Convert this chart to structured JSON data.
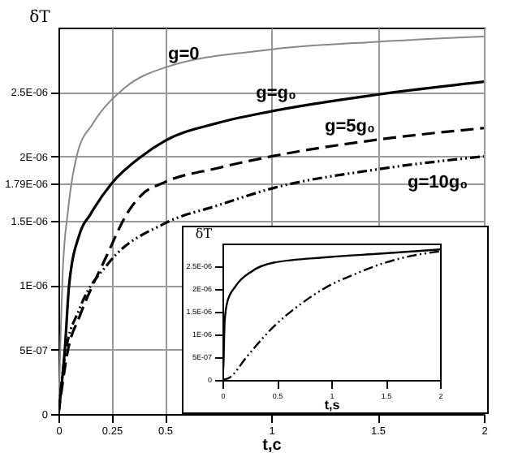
{
  "chart_data": [
    {
      "type": "line",
      "xlabel": "t,c",
      "ylabel": "δT",
      "xlim": [
        0,
        2
      ],
      "ylim": [
        0,
        3e-06
      ],
      "xticks": [
        0,
        0.25,
        0.5,
        1,
        1.5,
        2
      ],
      "yticks": [
        0,
        {
          "value": 5e-07,
          "label": "5E-07"
        },
        {
          "value": 1e-06,
          "label": "1E-06"
        },
        {
          "value": 1.5e-06,
          "label": "1.5E-06"
        },
        {
          "value": 1.79e-06,
          "label": "1.79E-06"
        },
        {
          "value": 2e-06,
          "label": "2E-06"
        },
        {
          "value": 2.5e-06,
          "label": "2.5E-06"
        }
      ],
      "grid": true,
      "series": [
        {
          "name": "g=0",
          "color": "#888888",
          "line_style": "solid",
          "x": [
            0,
            0.01,
            0.02,
            0.045,
            0.09,
            0.16,
            0.31,
            0.5,
            1,
            1.5,
            2
          ],
          "values": [
            0,
            6e-07,
            1.1e-06,
            1.58e-06,
            2.03e-06,
            2.25e-06,
            2.53e-06,
            2.69e-06,
            2.83e-06,
            2.89e-06,
            2.93e-06
          ]
        },
        {
          "name": "g=g₀",
          "color": "#000000",
          "line_style": "solid",
          "x": [
            0,
            0.03,
            0.05,
            0.1,
            0.15,
            0.25,
            0.39,
            0.5,
            0.75,
            1,
            1.5,
            2
          ],
          "values": [
            0,
            5e-07,
            1e-06,
            1.4e-06,
            1.55e-06,
            1.79e-06,
            2e-06,
            2.12e-06,
            2.26e-06,
            2.35e-06,
            2.48e-06,
            2.58e-06
          ]
        },
        {
          "name": "g=5g₀",
          "color": "#000000",
          "line_style": "dashed",
          "x": [
            0,
            0.045,
            0.1,
            0.23,
            0.32,
            0.39,
            0.5,
            0.75,
            1,
            1.5,
            2
          ],
          "values": [
            0,
            5e-07,
            7.6e-07,
            1.24e-06,
            1.55e-06,
            1.7e-06,
            1.8e-06,
            1.91e-06,
            2e-06,
            2.13e-06,
            2.22e-06
          ]
        },
        {
          "name": "g=10g₀",
          "color": "#000000",
          "line_style": "dotted",
          "x": [
            0,
            0.03,
            0.1,
            0.235,
            0.5,
            0.75,
            1,
            1.5,
            2
          ],
          "values": [
            0,
            4.5e-07,
            8.2e-07,
            1.17e-06,
            1.48e-06,
            1.62e-06,
            1.75e-06,
            1.9e-06,
            2e-06
          ]
        }
      ]
    },
    {
      "type": "line",
      "xlabel": "t,s",
      "ylabel": "δT",
      "xlim": [
        0,
        2
      ],
      "ylim": [
        0,
        3e-06
      ],
      "xticks": [
        0,
        0.5,
        1,
        1.5,
        2
      ],
      "yticks": [
        0,
        {
          "value": 5e-07,
          "label": "5E-07"
        },
        {
          "value": 1e-06,
          "label": "1E-06"
        },
        {
          "value": 1.5e-06,
          "label": "1.5E-06"
        },
        {
          "value": 2e-06,
          "label": "2E-06"
        },
        {
          "value": 2.5e-06,
          "label": "2.5E-06"
        }
      ],
      "series": [
        {
          "color": "#000000",
          "line_style": "solid",
          "x": [
            0,
            0.01,
            0.02,
            0.045,
            0.12,
            0.27,
            0.47,
            0.97,
            1.47,
            2
          ],
          "values": [
            0,
            3.9e-07,
            1.28e-06,
            1.72e-06,
            2.06e-06,
            2.39e-06,
            2.58e-06,
            2.7e-06,
            2.78e-06,
            2.87e-06
          ]
        },
        {
          "color": "#000000",
          "line_style": "dotted",
          "x": [
            0,
            0.07,
            0.22,
            0.47,
            0.72,
            0.97,
            1.22,
            1.47,
            1.72,
            2
          ],
          "values": [
            0,
            6e-08,
            5e-07,
            1.17e-06,
            1.67e-06,
            2.06e-06,
            2.33e-06,
            2.56e-06,
            2.72e-06,
            2.83e-06
          ]
        }
      ]
    }
  ]
}
